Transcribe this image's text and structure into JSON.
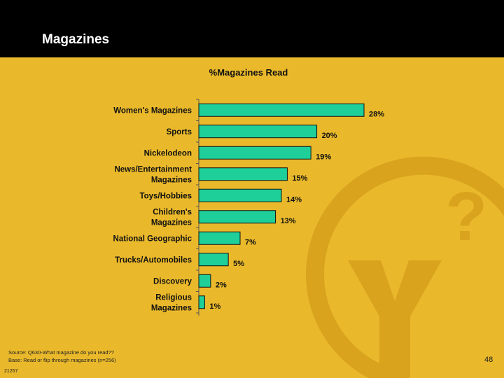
{
  "slide": {
    "title": "Magazines",
    "source_line1": "Source: Q630-What magazine do you read??",
    "source_line2": "Base: Read or flip through magazines (n=256)",
    "code": "21267",
    "page_number": "48"
  },
  "logo": {
    "question_mark": "?",
    "letter": "Y"
  },
  "colors": {
    "background": "#EAB92B",
    "header": "#000000",
    "bar": "#1FCF9A",
    "bar_outline": "#111111",
    "logo": "#D9A31E"
  },
  "chart_data": {
    "type": "bar",
    "orientation": "horizontal",
    "title": "%Magazines Read",
    "categories": [
      [
        "Women's Magazines"
      ],
      [
        "Sports"
      ],
      [
        "Nickelodeon"
      ],
      [
        "News/Entertainment",
        "Magazines"
      ],
      [
        "Toys/Hobbies"
      ],
      [
        "Children's",
        "Magazines"
      ],
      [
        "National Geographic"
      ],
      [
        "Trucks/Automobiles"
      ],
      [
        "Discovery"
      ],
      [
        "Religious",
        "Magazines"
      ]
    ],
    "values": [
      28,
      20,
      19,
      15,
      14,
      13,
      7,
      5,
      2,
      1
    ],
    "value_labels": [
      "28%",
      "20%",
      "19%",
      "15%",
      "14%",
      "13%",
      "7%",
      "5%",
      "2%",
      "1%"
    ],
    "xlim": [
      0,
      28
    ]
  }
}
